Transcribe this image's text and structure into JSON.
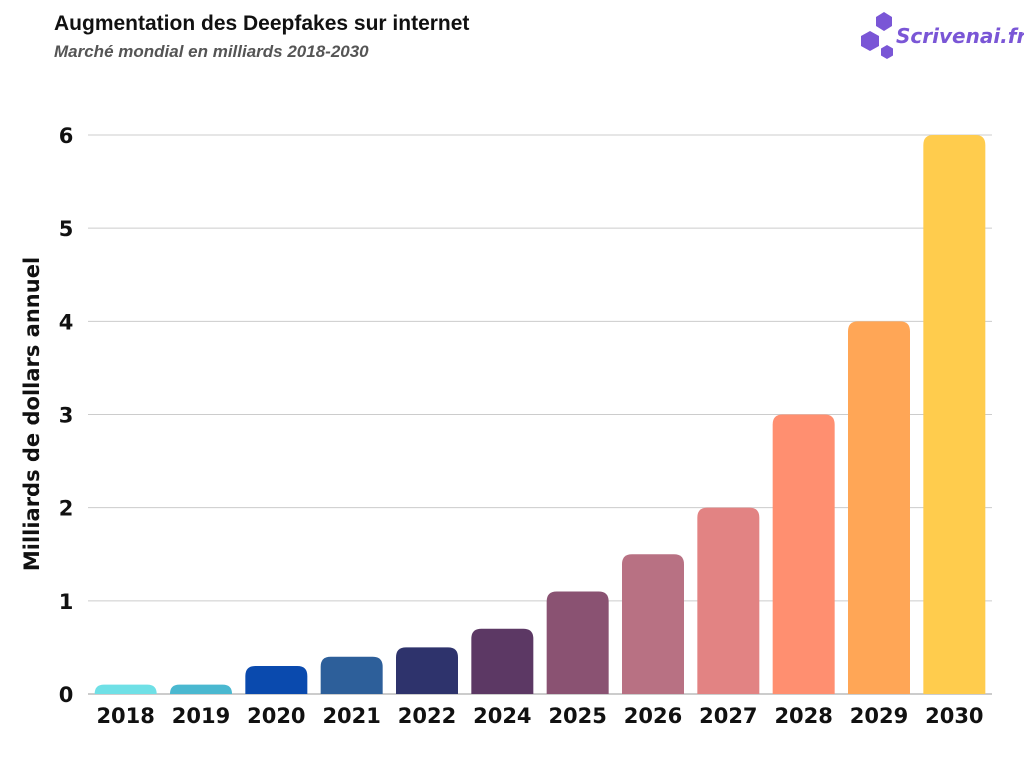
{
  "header": {
    "title": "Augmentation des Deepfakes sur internet",
    "subtitle": "Marché mondial en milliards 2018-2030"
  },
  "logo": {
    "text": "Scrivenai.fr",
    "icon": "hexagons-icon",
    "color": "#7a56d6"
  },
  "chart_data": {
    "type": "bar",
    "title": "Augmentation des Deepfakes sur internet",
    "subtitle": "Marché mondial en milliards 2018-2030",
    "xlabel": "",
    "ylabel": "Milliards de dollars annuel",
    "ylim": [
      0,
      6
    ],
    "yticks": [
      0,
      1,
      2,
      3,
      4,
      5,
      6
    ],
    "grid": true,
    "legend": "none",
    "categories": [
      "2018",
      "2019",
      "2020",
      "2021",
      "2022",
      "2024",
      "2025",
      "2026",
      "2027",
      "2028",
      "2029",
      "2030"
    ],
    "values": [
      0.1,
      0.1,
      0.3,
      0.4,
      0.5,
      0.7,
      1.1,
      1.5,
      2,
      3,
      4,
      6
    ],
    "colors": [
      "#6fe0e6",
      "#4ab8d0",
      "#0a4aae",
      "#2d5f9a",
      "#2e336c",
      "#5c3864",
      "#8a5272",
      "#b87183",
      "#e28383",
      "#ff8f70",
      "#ffa656",
      "#ffcc4d"
    ]
  }
}
